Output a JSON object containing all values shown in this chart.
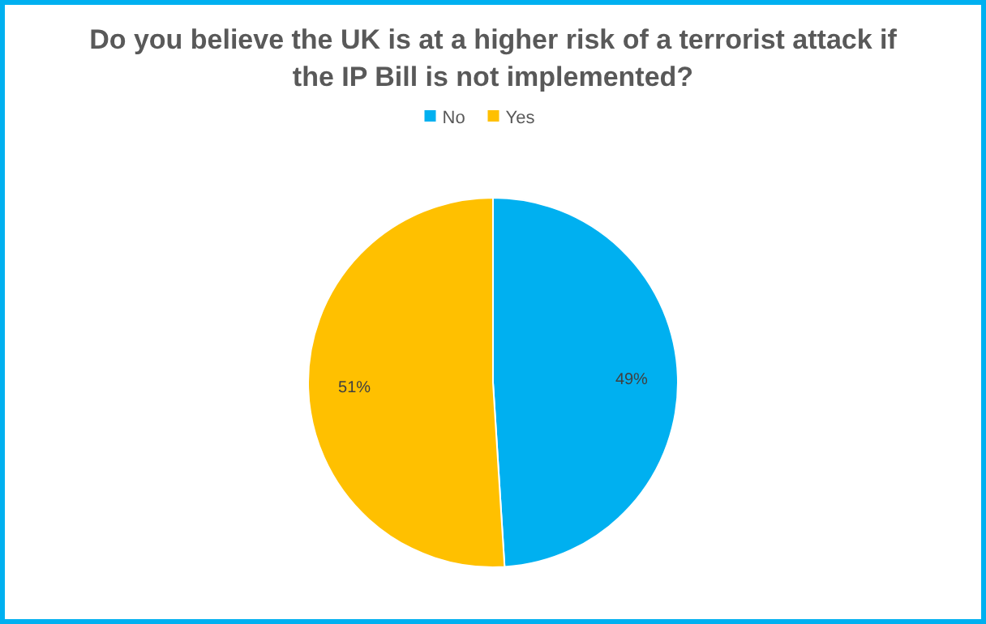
{
  "chart_data": {
    "type": "pie",
    "title": "Do you believe the UK is at a higher risk of a terrorist attack if the IP Bill is not implemented?",
    "categories": [
      "No",
      "Yes"
    ],
    "values": [
      49,
      51
    ],
    "colors": [
      "#00b0f0",
      "#ffc000"
    ],
    "value_labels": [
      "49%",
      "51%"
    ],
    "legend": "top"
  }
}
